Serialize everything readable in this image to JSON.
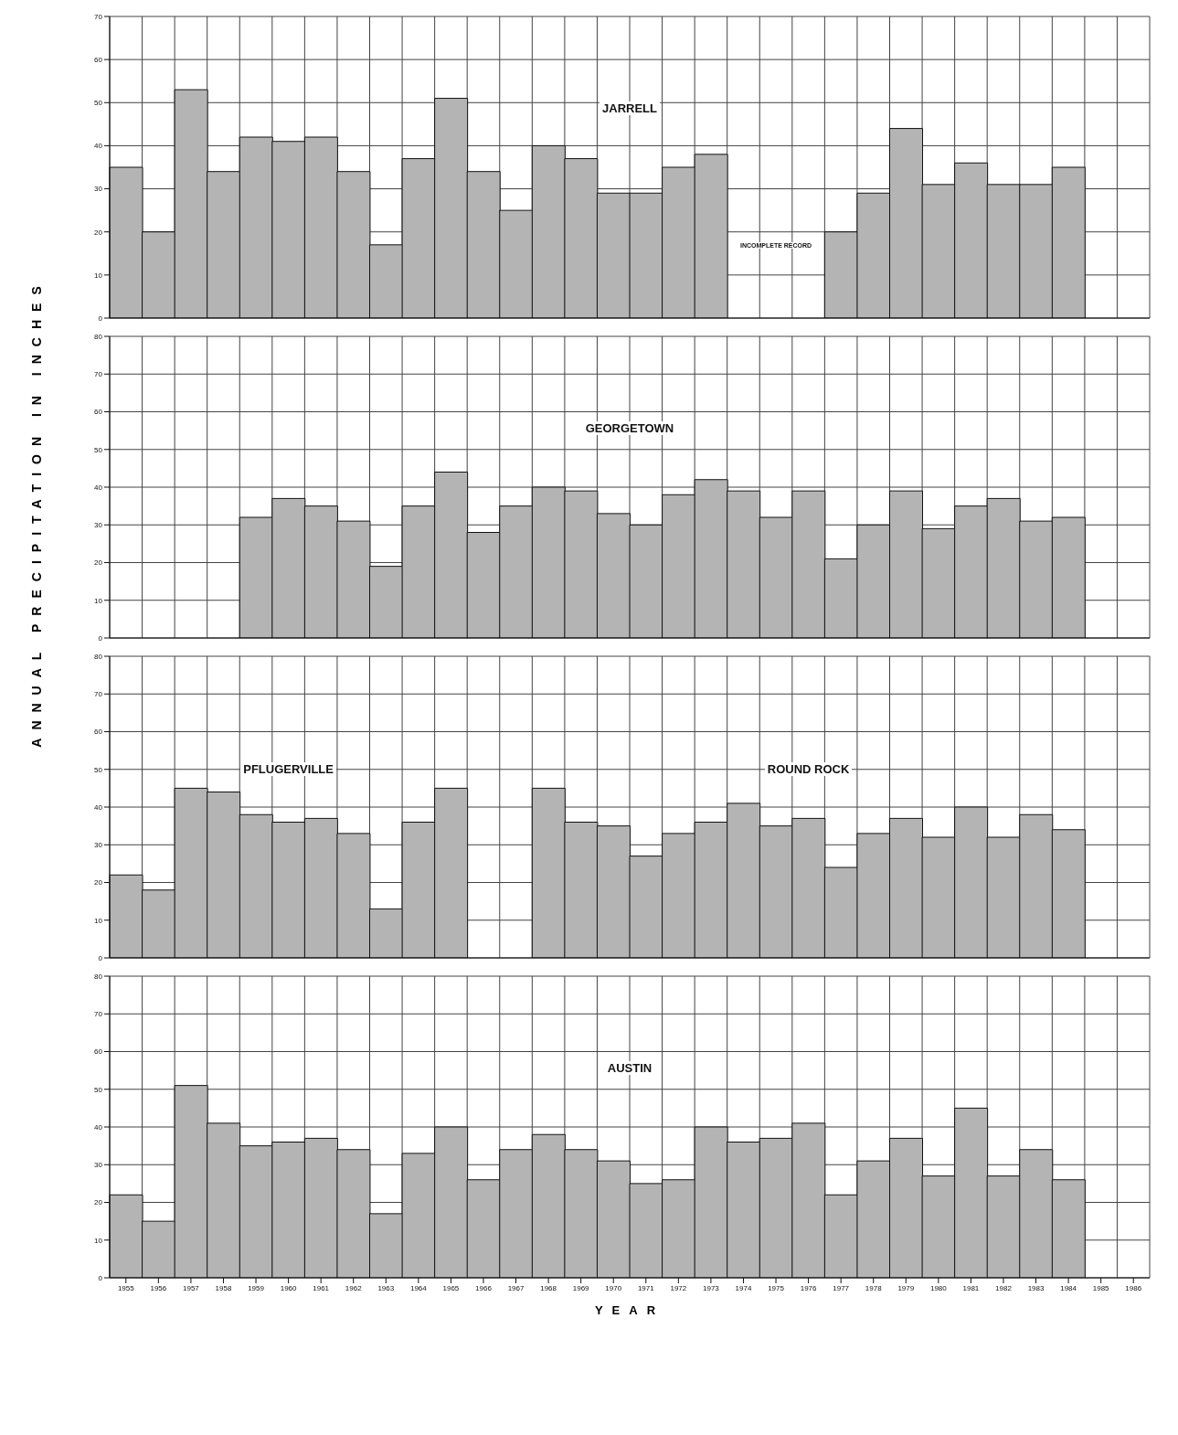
{
  "chart_data": [
    {
      "type": "bar",
      "title": "JARRELL",
      "categories": [
        "1955",
        "1956",
        "1957",
        "1958",
        "1959",
        "1960",
        "1961",
        "1962",
        "1963",
        "1964",
        "1965",
        "1966",
        "1967",
        "1968",
        "1969",
        "1970",
        "1971",
        "1972",
        "1973",
        "1974",
        "1975",
        "1976",
        "1977",
        "1978",
        "1979",
        "1980",
        "1981",
        "1982",
        "1983",
        "1984",
        "1985",
        "1986"
      ],
      "values": [
        35,
        20,
        53,
        34,
        42,
        41,
        42,
        34,
        17,
        37,
        51,
        34,
        25,
        40,
        37,
        29,
        29,
        35,
        38,
        null,
        null,
        null,
        20,
        29,
        44,
        31,
        36,
        31,
        31,
        35,
        null,
        null
      ],
      "color": "#b4b4b4",
      "ylim": [
        0,
        70
      ],
      "yticks": [
        0,
        10,
        20,
        30,
        40,
        50,
        60,
        70
      ],
      "grid": true,
      "tick_labels": "y",
      "annotations": [
        "INCOMPLETE RECORD"
      ]
    },
    {
      "type": "bar",
      "title": "GEORGETOWN",
      "ylabel": "ANNUAL PRECIPITATION IN INCHES",
      "categories": [
        "1955",
        "1956",
        "1957",
        "1958",
        "1959",
        "1960",
        "1961",
        "1962",
        "1963",
        "1964",
        "1965",
        "1966",
        "1967",
        "1968",
        "1969",
        "1970",
        "1971",
        "1972",
        "1973",
        "1974",
        "1975",
        "1976",
        "1977",
        "1978",
        "1979",
        "1980",
        "1981",
        "1982",
        "1983",
        "1984",
        "1985",
        "1986"
      ],
      "values": [
        null,
        null,
        null,
        null,
        32,
        37,
        35,
        31,
        19,
        35,
        44,
        28,
        35,
        40,
        39,
        33,
        30,
        38,
        42,
        39,
        32,
        39,
        21,
        30,
        39,
        29,
        35,
        37,
        31,
        32,
        null,
        null
      ],
      "color": "#b4b4b4",
      "ylim": [
        0,
        80
      ],
      "yticks": [
        0,
        10,
        20,
        30,
        40,
        50,
        60,
        70,
        80
      ],
      "grid": true,
      "tick_labels": "y"
    },
    {
      "type": "bar",
      "categories": [
        "1955",
        "1956",
        "1957",
        "1958",
        "1959",
        "1960",
        "1961",
        "1962",
        "1963",
        "1964",
        "1965",
        "1966",
        "1967",
        "1968",
        "1969",
        "1970",
        "1971",
        "1972",
        "1973",
        "1974",
        "1975",
        "1976",
        "1977",
        "1978",
        "1979",
        "1980",
        "1981",
        "1982",
        "1983",
        "1984",
        "1985",
        "1986"
      ],
      "series": [
        {
          "name": "PFLUGERVILLE",
          "color": "#b4b4b4",
          "values": [
            22,
            18,
            45,
            44,
            38,
            36,
            37,
            33,
            13,
            36,
            45,
            null,
            null,
            null,
            null,
            null,
            null,
            null,
            null,
            null,
            null,
            null,
            null,
            null,
            null,
            null,
            null,
            null,
            null,
            null,
            null,
            null
          ]
        },
        {
          "name": "ROUND ROCK",
          "color": "#b4b4b4",
          "values": [
            null,
            null,
            null,
            null,
            null,
            null,
            null,
            null,
            null,
            null,
            null,
            null,
            null,
            45,
            36,
            35,
            27,
            33,
            36,
            41,
            35,
            37,
            24,
            33,
            37,
            32,
            40,
            32,
            38,
            34,
            null,
            null
          ]
        }
      ],
      "ylim": [
        0,
        80
      ],
      "yticks": [
        0,
        10,
        20,
        30,
        40,
        50,
        60,
        70,
        80
      ],
      "grid": true,
      "tick_labels": "y"
    },
    {
      "type": "bar",
      "title": "AUSTIN",
      "xlabel": "YEAR",
      "categories": [
        "1955",
        "1956",
        "1957",
        "1958",
        "1959",
        "1960",
        "1961",
        "1962",
        "1963",
        "1964",
        "1965",
        "1966",
        "1967",
        "1968",
        "1969",
        "1970",
        "1971",
        "1972",
        "1973",
        "1974",
        "1975",
        "1976",
        "1977",
        "1978",
        "1979",
        "1980",
        "1981",
        "1982",
        "1983",
        "1984",
        "1985",
        "1986"
      ],
      "values": [
        22,
        15,
        51,
        41,
        35,
        36,
        37,
        34,
        17,
        33,
        40,
        26,
        34,
        38,
        34,
        31,
        25,
        26,
        40,
        36,
        37,
        41,
        22,
        31,
        37,
        27,
        45,
        27,
        34,
        26,
        null,
        null
      ],
      "color": "#b4b4b4",
      "ylim": [
        0,
        80
      ],
      "yticks": [
        0,
        10,
        20,
        30,
        40,
        50,
        60,
        70,
        80
      ],
      "grid": true
    }
  ]
}
